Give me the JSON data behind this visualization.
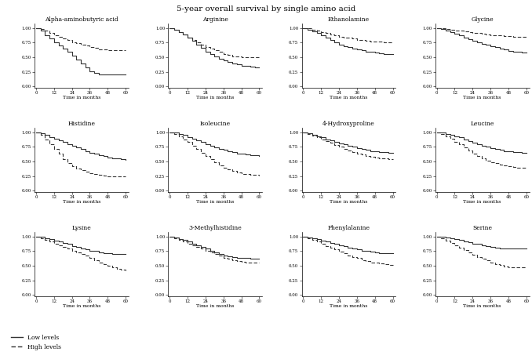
{
  "title": "5-year overall survival by single amino acid",
  "title_fontsize": 7.5,
  "background_color": "#ffffff",
  "subplots": [
    {
      "name": "Alpha-aminobutyric acid",
      "low": {
        "x": [
          0,
          3,
          6,
          9,
          12,
          15,
          18,
          21,
          24,
          27,
          30,
          33,
          36,
          39,
          42,
          45,
          48,
          51,
          54,
          57,
          60
        ],
        "y": [
          1.0,
          0.95,
          0.88,
          0.82,
          0.76,
          0.7,
          0.65,
          0.59,
          0.53,
          0.46,
          0.4,
          0.33,
          0.26,
          0.23,
          0.2,
          0.2,
          0.2,
          0.2,
          0.2,
          0.2,
          0.2
        ]
      },
      "high": {
        "x": [
          0,
          3,
          6,
          9,
          12,
          15,
          18,
          21,
          24,
          27,
          30,
          33,
          36,
          39,
          42,
          45,
          48,
          51,
          54,
          57,
          60
        ],
        "y": [
          1.0,
          0.98,
          0.95,
          0.92,
          0.88,
          0.85,
          0.82,
          0.79,
          0.76,
          0.74,
          0.72,
          0.7,
          0.68,
          0.66,
          0.64,
          0.63,
          0.62,
          0.62,
          0.62,
          0.62,
          0.62
        ]
      }
    },
    {
      "name": "Arginine",
      "low": {
        "x": [
          0,
          3,
          6,
          9,
          12,
          15,
          18,
          21,
          24,
          27,
          30,
          33,
          36,
          39,
          42,
          45,
          48,
          51,
          54,
          57,
          60
        ],
        "y": [
          1.0,
          0.97,
          0.93,
          0.89,
          0.84,
          0.78,
          0.72,
          0.66,
          0.6,
          0.55,
          0.51,
          0.48,
          0.45,
          0.42,
          0.4,
          0.38,
          0.36,
          0.35,
          0.34,
          0.33,
          0.32
        ]
      },
      "high": {
        "x": [
          0,
          3,
          6,
          9,
          12,
          15,
          18,
          21,
          24,
          27,
          30,
          33,
          36,
          39,
          42,
          45,
          48,
          51,
          54,
          57,
          60
        ],
        "y": [
          1.0,
          0.97,
          0.93,
          0.89,
          0.84,
          0.8,
          0.76,
          0.72,
          0.68,
          0.65,
          0.62,
          0.59,
          0.56,
          0.54,
          0.52,
          0.51,
          0.5,
          0.5,
          0.5,
          0.5,
          0.5
        ]
      }
    },
    {
      "name": "Ethanolamine",
      "low": {
        "x": [
          0,
          3,
          6,
          9,
          12,
          15,
          18,
          21,
          24,
          27,
          30,
          33,
          36,
          39,
          42,
          45,
          48,
          51,
          54,
          57,
          60
        ],
        "y": [
          1.0,
          0.97,
          0.94,
          0.91,
          0.87,
          0.83,
          0.79,
          0.75,
          0.72,
          0.69,
          0.67,
          0.65,
          0.63,
          0.62,
          0.6,
          0.59,
          0.58,
          0.57,
          0.56,
          0.55,
          0.55
        ]
      },
      "high": {
        "x": [
          0,
          3,
          6,
          9,
          12,
          15,
          18,
          21,
          24,
          27,
          30,
          33,
          36,
          39,
          42,
          45,
          48,
          51,
          54,
          57,
          60
        ],
        "y": [
          1.0,
          0.99,
          0.97,
          0.95,
          0.93,
          0.91,
          0.89,
          0.87,
          0.85,
          0.84,
          0.83,
          0.82,
          0.8,
          0.79,
          0.78,
          0.77,
          0.77,
          0.77,
          0.76,
          0.75,
          0.75
        ]
      }
    },
    {
      "name": "Glycine",
      "low": {
        "x": [
          0,
          3,
          6,
          9,
          12,
          15,
          18,
          21,
          24,
          27,
          30,
          33,
          36,
          39,
          42,
          45,
          48,
          51,
          54,
          57,
          60
        ],
        "y": [
          1.0,
          0.98,
          0.95,
          0.93,
          0.9,
          0.87,
          0.84,
          0.81,
          0.78,
          0.75,
          0.73,
          0.71,
          0.69,
          0.67,
          0.65,
          0.63,
          0.61,
          0.6,
          0.59,
          0.58,
          0.58
        ]
      },
      "high": {
        "x": [
          0,
          3,
          6,
          9,
          12,
          15,
          18,
          21,
          24,
          27,
          30,
          33,
          36,
          39,
          42,
          45,
          48,
          51,
          54,
          57,
          60
        ],
        "y": [
          1.0,
          0.99,
          0.98,
          0.97,
          0.96,
          0.95,
          0.94,
          0.93,
          0.92,
          0.91,
          0.9,
          0.89,
          0.88,
          0.87,
          0.87,
          0.86,
          0.86,
          0.85,
          0.85,
          0.85,
          0.85
        ]
      }
    },
    {
      "name": "Histidine",
      "low": {
        "x": [
          0,
          3,
          6,
          9,
          12,
          15,
          18,
          21,
          24,
          27,
          30,
          33,
          36,
          39,
          42,
          45,
          48,
          51,
          54,
          57,
          60
        ],
        "y": [
          1.0,
          0.98,
          0.95,
          0.92,
          0.89,
          0.86,
          0.83,
          0.8,
          0.77,
          0.74,
          0.71,
          0.68,
          0.65,
          0.63,
          0.61,
          0.59,
          0.57,
          0.56,
          0.55,
          0.54,
          0.53
        ]
      },
      "high": {
        "x": [
          0,
          3,
          6,
          9,
          12,
          15,
          18,
          21,
          24,
          27,
          30,
          33,
          36,
          39,
          42,
          45,
          48,
          51,
          54,
          57,
          60
        ],
        "y": [
          1.0,
          0.95,
          0.88,
          0.8,
          0.72,
          0.63,
          0.54,
          0.47,
          0.42,
          0.38,
          0.35,
          0.33,
          0.3,
          0.28,
          0.27,
          0.26,
          0.25,
          0.25,
          0.25,
          0.25,
          0.25
        ]
      }
    },
    {
      "name": "Isoleucine",
      "low": {
        "x": [
          0,
          3,
          6,
          9,
          12,
          15,
          18,
          21,
          24,
          27,
          30,
          33,
          36,
          39,
          42,
          45,
          48,
          51,
          54,
          57,
          60
        ],
        "y": [
          1.0,
          0.99,
          0.97,
          0.95,
          0.92,
          0.89,
          0.86,
          0.83,
          0.8,
          0.77,
          0.74,
          0.72,
          0.7,
          0.68,
          0.66,
          0.64,
          0.63,
          0.62,
          0.61,
          0.61,
          0.6
        ]
      },
      "high": {
        "x": [
          0,
          3,
          6,
          9,
          12,
          15,
          18,
          21,
          24,
          27,
          30,
          33,
          36,
          39,
          42,
          45,
          48,
          51,
          54,
          57,
          60
        ],
        "y": [
          1.0,
          0.97,
          0.93,
          0.88,
          0.83,
          0.77,
          0.71,
          0.65,
          0.59,
          0.54,
          0.49,
          0.44,
          0.4,
          0.37,
          0.34,
          0.31,
          0.29,
          0.28,
          0.27,
          0.27,
          0.26
        ]
      }
    },
    {
      "name": "4-Hydroxyproline",
      "low": {
        "x": [
          0,
          3,
          6,
          9,
          12,
          15,
          18,
          21,
          24,
          27,
          30,
          33,
          36,
          39,
          42,
          45,
          48,
          51,
          54,
          57,
          60
        ],
        "y": [
          1.0,
          0.98,
          0.96,
          0.93,
          0.91,
          0.88,
          0.86,
          0.83,
          0.81,
          0.79,
          0.77,
          0.75,
          0.73,
          0.71,
          0.7,
          0.68,
          0.67,
          0.66,
          0.66,
          0.65,
          0.65
        ]
      },
      "high": {
        "x": [
          0,
          3,
          6,
          9,
          12,
          15,
          18,
          21,
          24,
          27,
          30,
          33,
          36,
          39,
          42,
          45,
          48,
          51,
          54,
          57,
          60
        ],
        "y": [
          1.0,
          0.97,
          0.94,
          0.91,
          0.88,
          0.85,
          0.82,
          0.78,
          0.75,
          0.72,
          0.69,
          0.66,
          0.64,
          0.62,
          0.6,
          0.58,
          0.57,
          0.56,
          0.55,
          0.54,
          0.54
        ]
      }
    },
    {
      "name": "Leucine",
      "low": {
        "x": [
          0,
          3,
          6,
          9,
          12,
          15,
          18,
          21,
          24,
          27,
          30,
          33,
          36,
          39,
          42,
          45,
          48,
          51,
          54,
          57,
          60
        ],
        "y": [
          1.0,
          0.99,
          0.97,
          0.95,
          0.93,
          0.91,
          0.88,
          0.85,
          0.82,
          0.8,
          0.77,
          0.75,
          0.73,
          0.71,
          0.7,
          0.68,
          0.67,
          0.66,
          0.66,
          0.65,
          0.65
        ]
      },
      "high": {
        "x": [
          0,
          3,
          6,
          9,
          12,
          15,
          18,
          21,
          24,
          27,
          30,
          33,
          36,
          39,
          42,
          45,
          48,
          51,
          54,
          57,
          60
        ],
        "y": [
          1.0,
          0.97,
          0.93,
          0.89,
          0.84,
          0.79,
          0.74,
          0.69,
          0.64,
          0.59,
          0.55,
          0.52,
          0.49,
          0.47,
          0.45,
          0.43,
          0.42,
          0.41,
          0.4,
          0.4,
          0.4
        ]
      }
    },
    {
      "name": "Lysine",
      "low": {
        "x": [
          0,
          3,
          6,
          9,
          12,
          15,
          18,
          21,
          24,
          27,
          30,
          33,
          36,
          39,
          42,
          45,
          48,
          51,
          54,
          57,
          60
        ],
        "y": [
          1.0,
          0.99,
          0.97,
          0.95,
          0.93,
          0.91,
          0.89,
          0.87,
          0.84,
          0.82,
          0.8,
          0.78,
          0.76,
          0.75,
          0.73,
          0.72,
          0.71,
          0.7,
          0.7,
          0.7,
          0.7
        ]
      },
      "high": {
        "x": [
          0,
          3,
          6,
          9,
          12,
          15,
          18,
          21,
          24,
          27,
          30,
          33,
          36,
          39,
          42,
          45,
          48,
          51,
          54,
          57,
          60
        ],
        "y": [
          1.0,
          0.97,
          0.94,
          0.91,
          0.88,
          0.85,
          0.82,
          0.79,
          0.76,
          0.73,
          0.7,
          0.67,
          0.64,
          0.6,
          0.56,
          0.53,
          0.5,
          0.48,
          0.45,
          0.43,
          0.42
        ]
      }
    },
    {
      "name": "3-Methylhistidine",
      "low": {
        "x": [
          0,
          3,
          6,
          9,
          12,
          15,
          18,
          21,
          24,
          27,
          30,
          33,
          36,
          39,
          42,
          45,
          48,
          51,
          54,
          57,
          60
        ],
        "y": [
          1.0,
          0.98,
          0.96,
          0.94,
          0.91,
          0.88,
          0.85,
          0.82,
          0.79,
          0.76,
          0.73,
          0.7,
          0.68,
          0.66,
          0.65,
          0.64,
          0.63,
          0.63,
          0.62,
          0.62,
          0.62
        ]
      },
      "high": {
        "x": [
          0,
          3,
          6,
          9,
          12,
          15,
          18,
          21,
          24,
          27,
          30,
          33,
          36,
          39,
          42,
          45,
          48,
          51,
          54,
          57,
          60
        ],
        "y": [
          1.0,
          0.97,
          0.94,
          0.91,
          0.88,
          0.85,
          0.82,
          0.79,
          0.76,
          0.73,
          0.7,
          0.67,
          0.64,
          0.62,
          0.6,
          0.58,
          0.57,
          0.56,
          0.55,
          0.55,
          0.55
        ]
      }
    },
    {
      "name": "Phenylalanine",
      "low": {
        "x": [
          0,
          3,
          6,
          9,
          12,
          15,
          18,
          21,
          24,
          27,
          30,
          33,
          36,
          39,
          42,
          45,
          48,
          51,
          54,
          57,
          60
        ],
        "y": [
          1.0,
          0.98,
          0.97,
          0.95,
          0.93,
          0.91,
          0.89,
          0.87,
          0.85,
          0.83,
          0.81,
          0.79,
          0.78,
          0.76,
          0.75,
          0.74,
          0.73,
          0.72,
          0.72,
          0.71,
          0.71
        ]
      },
      "high": {
        "x": [
          0,
          3,
          6,
          9,
          12,
          15,
          18,
          21,
          24,
          27,
          30,
          33,
          36,
          39,
          42,
          45,
          48,
          51,
          54,
          57,
          60
        ],
        "y": [
          1.0,
          0.97,
          0.94,
          0.91,
          0.88,
          0.84,
          0.81,
          0.78,
          0.74,
          0.71,
          0.68,
          0.65,
          0.63,
          0.6,
          0.58,
          0.56,
          0.55,
          0.54,
          0.53,
          0.52,
          0.52
        ]
      }
    },
    {
      "name": "Serine",
      "low": {
        "x": [
          0,
          3,
          6,
          9,
          12,
          15,
          18,
          21,
          24,
          27,
          30,
          33,
          36,
          39,
          42,
          45,
          48,
          51,
          54,
          57,
          60
        ],
        "y": [
          1.0,
          0.99,
          0.98,
          0.97,
          0.96,
          0.94,
          0.92,
          0.9,
          0.88,
          0.87,
          0.85,
          0.84,
          0.82,
          0.81,
          0.8,
          0.8,
          0.79,
          0.79,
          0.79,
          0.79,
          0.79
        ]
      },
      "high": {
        "x": [
          0,
          3,
          6,
          9,
          12,
          15,
          18,
          21,
          24,
          27,
          30,
          33,
          36,
          39,
          42,
          45,
          48,
          51,
          54,
          57,
          60
        ],
        "y": [
          1.0,
          0.97,
          0.93,
          0.89,
          0.85,
          0.81,
          0.77,
          0.73,
          0.69,
          0.65,
          0.62,
          0.59,
          0.55,
          0.53,
          0.51,
          0.49,
          0.48,
          0.47,
          0.47,
          0.47,
          0.47
        ]
      }
    }
  ],
  "low_color": "#333333",
  "high_color": "#333333",
  "low_linestyle": "-",
  "high_linestyle": "--",
  "linewidth": 0.8
}
